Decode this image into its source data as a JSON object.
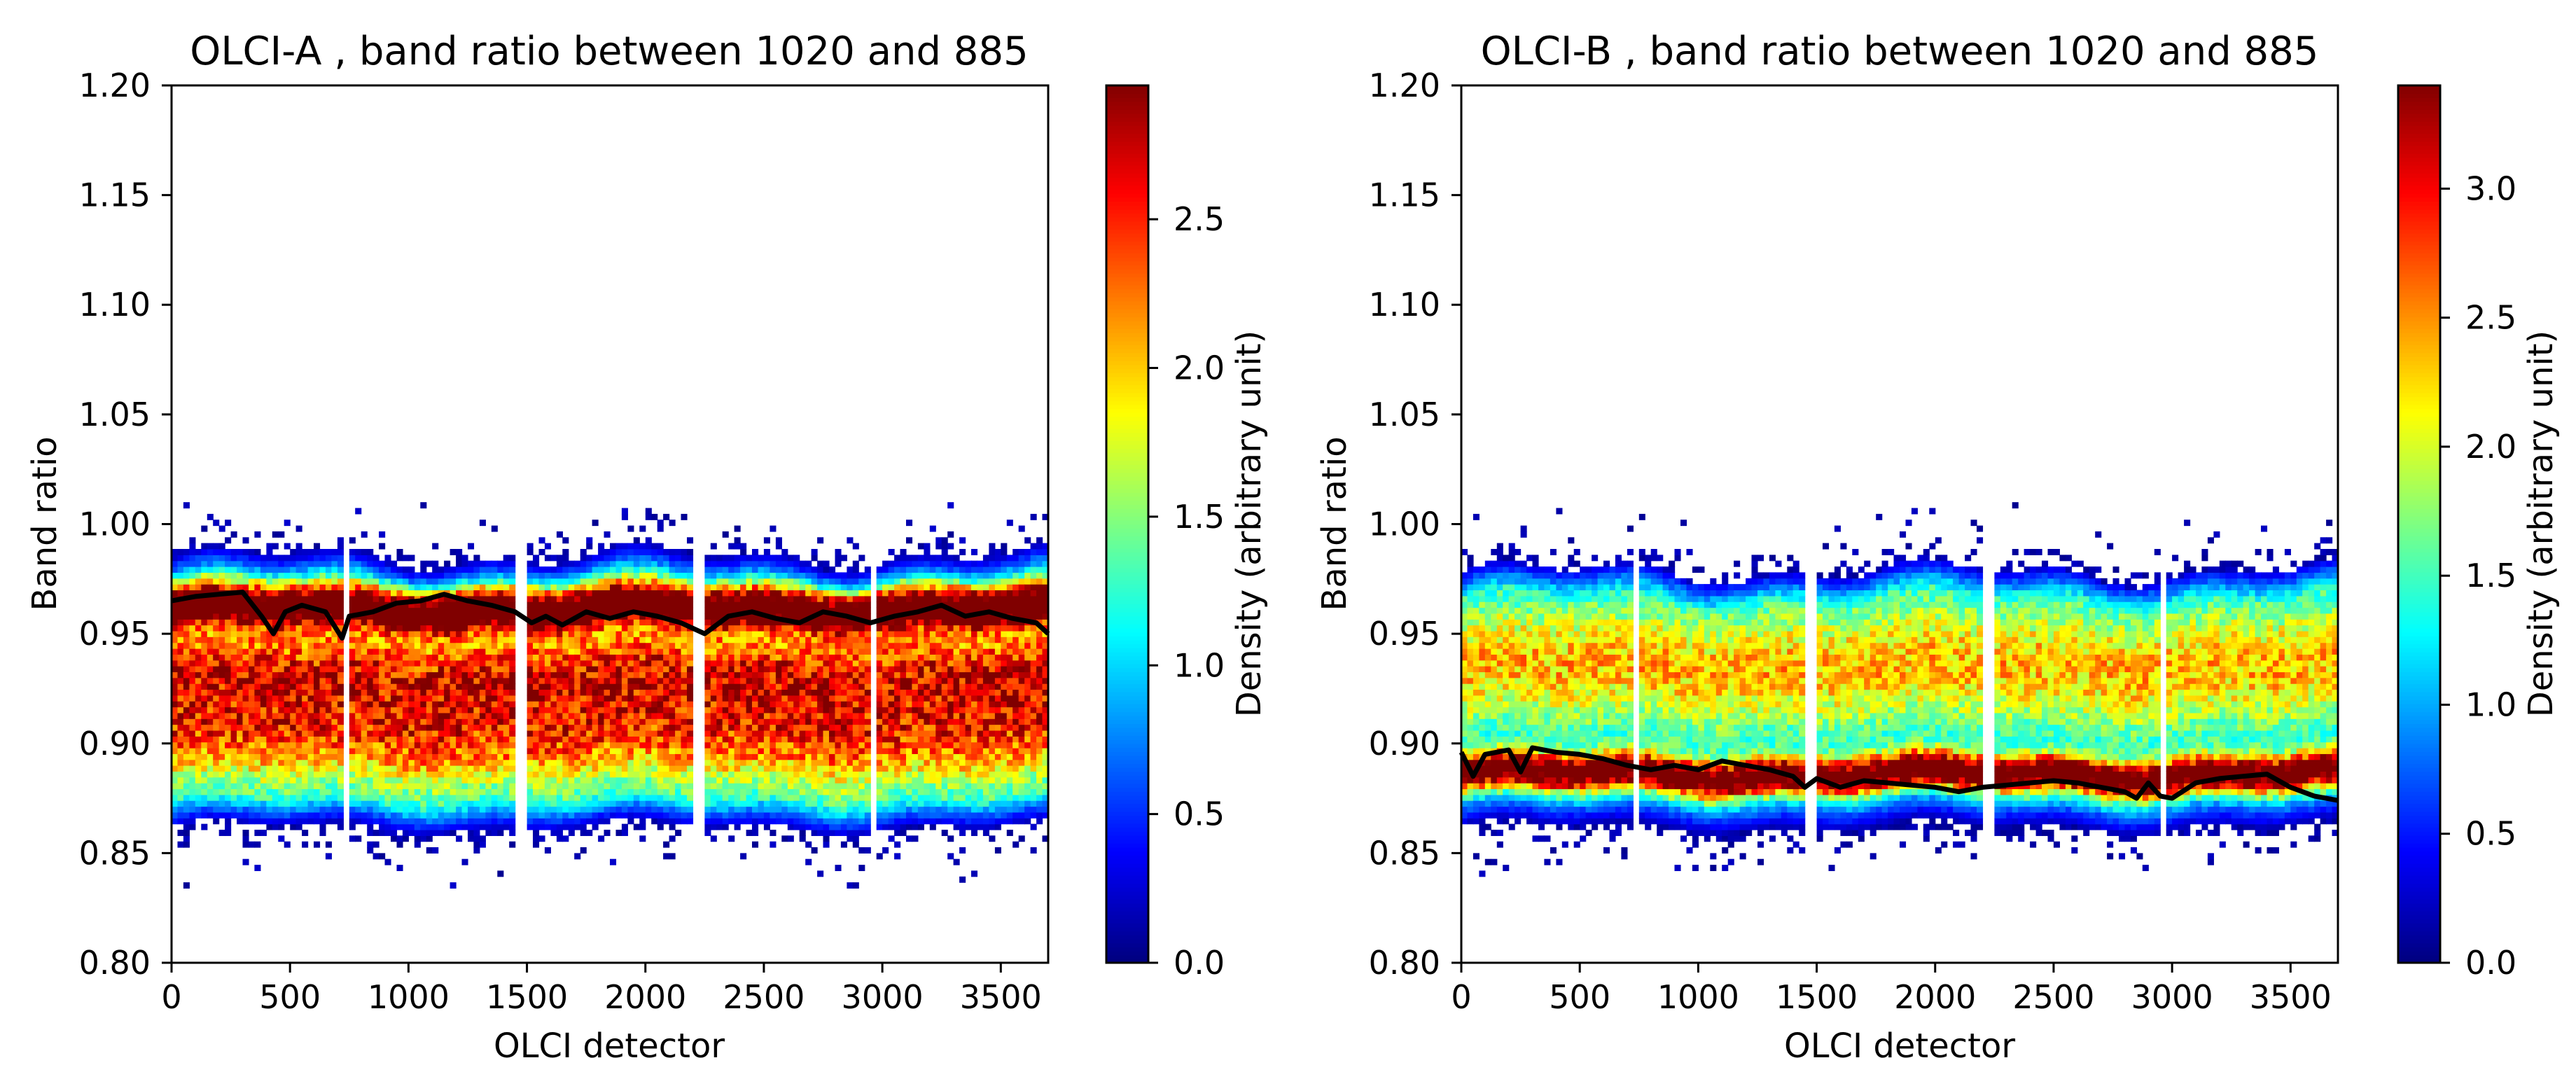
{
  "chart_data": [
    {
      "type": "heatmap",
      "title": "OLCI-A , band ratio between 1020 and 885",
      "xlabel": "OLCI detector",
      "ylabel": "Band ratio",
      "xlim": [
        0,
        3700
      ],
      "ylim": [
        0.8,
        1.2
      ],
      "xticks": [
        0,
        500,
        1000,
        1500,
        2000,
        2500,
        3000,
        3500
      ],
      "xtick_labels": [
        "0",
        "500",
        "1000",
        "1500",
        "2000",
        "2500",
        "3000",
        "3500"
      ],
      "yticks": [
        0.8,
        0.85,
        0.9,
        0.95,
        1.0,
        1.05,
        1.1,
        1.15,
        1.2
      ],
      "ytick_labels": [
        "0.80",
        "0.85",
        "0.90",
        "0.95",
        "1.00",
        "1.05",
        "1.10",
        "1.15",
        "1.20"
      ],
      "colorbar": {
        "label": "Density (arbitrary unit)",
        "colormap": "jet",
        "range": [
          0,
          2.95
        ],
        "ticks": [
          0.0,
          0.5,
          1.0,
          1.5,
          2.0,
          2.5
        ],
        "tick_labels": [
          "0.0",
          "0.5",
          "1.0",
          "1.5",
          "2.0",
          "2.5"
        ]
      },
      "camera_gaps": [
        740,
        1480,
        2220,
        2960
      ],
      "density_model": {
        "upper_edge": 0.985,
        "lower_edge": 0.862,
        "peaks": [
          {
            "center": 0.962,
            "width": 0.009,
            "amp": 2.6
          },
          {
            "center": 0.933,
            "width": 0.022,
            "amp": 1.4
          },
          {
            "center": 0.902,
            "width": 0.022,
            "amp": 1.2
          }
        ]
      },
      "median_line": {
        "x": [
          0,
          100,
          200,
          300,
          380,
          430,
          480,
          550,
          650,
          720,
          750,
          850,
          950,
          1050,
          1150,
          1250,
          1350,
          1450,
          1520,
          1580,
          1650,
          1750,
          1850,
          1950,
          2050,
          2150,
          2250,
          2350,
          2450,
          2550,
          2650,
          2750,
          2850,
          2950,
          3050,
          3150,
          3250,
          3350,
          3450,
          3550,
          3650,
          3700
        ],
        "y": [
          0.965,
          0.967,
          0.968,
          0.969,
          0.958,
          0.95,
          0.96,
          0.963,
          0.96,
          0.948,
          0.958,
          0.96,
          0.964,
          0.965,
          0.968,
          0.965,
          0.963,
          0.96,
          0.955,
          0.958,
          0.954,
          0.96,
          0.957,
          0.96,
          0.958,
          0.955,
          0.95,
          0.958,
          0.96,
          0.957,
          0.955,
          0.96,
          0.958,
          0.955,
          0.958,
          0.96,
          0.963,
          0.958,
          0.96,
          0.957,
          0.955,
          0.95
        ]
      }
    },
    {
      "type": "heatmap",
      "title": "OLCI-B , band ratio between 1020 and 885",
      "xlabel": "OLCI detector",
      "ylabel": "Band ratio",
      "xlim": [
        0,
        3700
      ],
      "ylim": [
        0.8,
        1.2
      ],
      "xticks": [
        0,
        500,
        1000,
        1500,
        2000,
        2500,
        3000,
        3500
      ],
      "xtick_labels": [
        "0",
        "500",
        "1000",
        "1500",
        "2000",
        "2500",
        "3000",
        "3500"
      ],
      "yticks": [
        0.8,
        0.85,
        0.9,
        0.95,
        1.0,
        1.05,
        1.1,
        1.15,
        1.2
      ],
      "ytick_labels": [
        "0.80",
        "0.85",
        "0.90",
        "0.95",
        "1.00",
        "1.05",
        "1.10",
        "1.15",
        "1.20"
      ],
      "colorbar": {
        "label": "Density (arbitrary unit)",
        "colormap": "jet",
        "range": [
          0,
          3.4
        ],
        "ticks": [
          0.0,
          0.5,
          1.0,
          1.5,
          2.0,
          2.5,
          3.0
        ],
        "tick_labels": [
          "0.0",
          "0.5",
          "1.0",
          "1.5",
          "2.0",
          "2.5",
          "3.0"
        ]
      },
      "camera_gaps": [
        740,
        1480,
        2220,
        2960
      ],
      "density_model": {
        "upper_edge": 0.978,
        "lower_edge": 0.862,
        "peaks": [
          {
            "center": 0.886,
            "width": 0.008,
            "amp": 3.0
          },
          {
            "center": 0.935,
            "width": 0.03,
            "amp": 1.3
          }
        ]
      },
      "median_line": {
        "x": [
          0,
          50,
          100,
          200,
          250,
          300,
          400,
          500,
          600,
          700,
          800,
          900,
          1000,
          1100,
          1200,
          1300,
          1400,
          1450,
          1500,
          1600,
          1700,
          1800,
          1900,
          2000,
          2100,
          2200,
          2300,
          2400,
          2500,
          2600,
          2700,
          2800,
          2850,
          2900,
          2950,
          3000,
          3100,
          3200,
          3300,
          3400,
          3500,
          3600,
          3700
        ],
        "y": [
          0.896,
          0.885,
          0.895,
          0.897,
          0.887,
          0.898,
          0.896,
          0.895,
          0.893,
          0.89,
          0.888,
          0.89,
          0.888,
          0.892,
          0.89,
          0.888,
          0.885,
          0.88,
          0.884,
          0.88,
          0.883,
          0.882,
          0.881,
          0.88,
          0.878,
          0.88,
          0.881,
          0.882,
          0.883,
          0.882,
          0.88,
          0.878,
          0.875,
          0.882,
          0.876,
          0.875,
          0.882,
          0.884,
          0.885,
          0.886,
          0.88,
          0.876,
          0.874
        ]
      }
    }
  ]
}
